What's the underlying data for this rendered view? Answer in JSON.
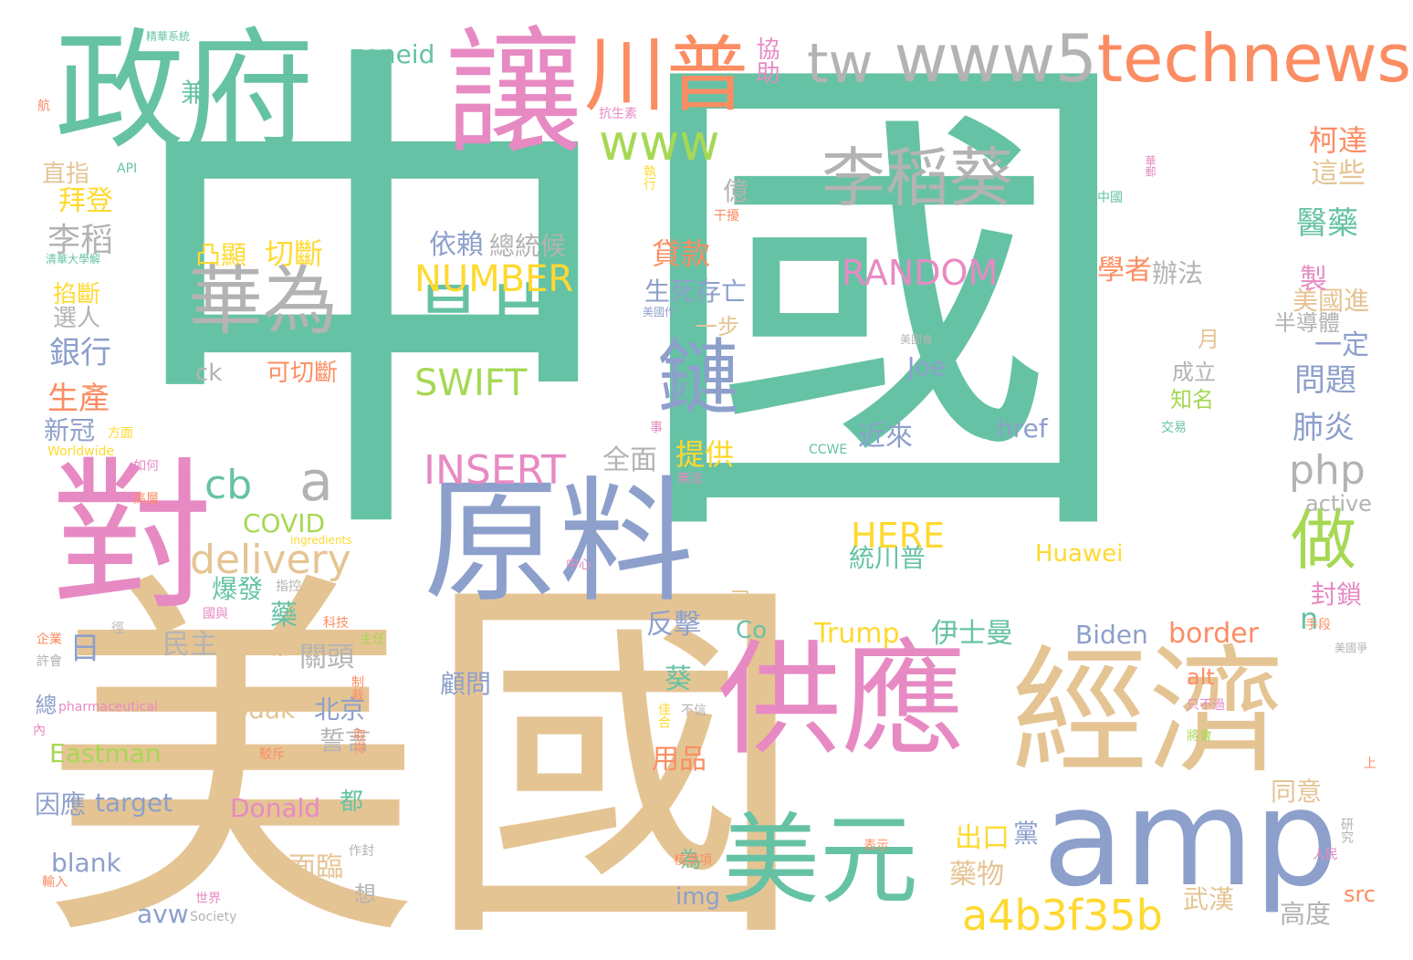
{
  "colors": {
    "teal": "#66c2a5",
    "orange": "#fc8d62",
    "blue": "#8da0cb",
    "pink": "#e78ac3",
    "green": "#a6d854",
    "yellow": "#ffd92f",
    "tan": "#e5c494",
    "grey": "#b3b3b3"
  },
  "words": [
    {
      "text": "中國",
      "color": "teal"
    },
    {
      "text": "美國",
      "color": "tan"
    },
    {
      "text": "政府",
      "color": "teal"
    },
    {
      "text": "讓",
      "color": "pink"
    },
    {
      "text": "川普",
      "color": "orange"
    },
    {
      "text": "tw",
      "color": "grey"
    },
    {
      "text": "www5technews",
      "color": "grey"
    },
    {
      "text": "technews",
      "color": "orange"
    },
    {
      "text": "對",
      "color": "pink"
    },
    {
      "text": "原料",
      "color": "blue"
    },
    {
      "text": "供應",
      "color": "pink"
    },
    {
      "text": "經濟",
      "color": "tan"
    },
    {
      "text": "美元",
      "color": "teal"
    },
    {
      "text": "amp",
      "color": "blue"
    },
    {
      "text": "李稻葵",
      "color": "grey"
    },
    {
      "text": "華為",
      "color": "grey"
    },
    {
      "text": "晶片",
      "color": "teal"
    },
    {
      "text": "鏈",
      "color": "blue"
    },
    {
      "text": "www",
      "color": "green"
    },
    {
      "text": "NUMBER",
      "color": "yellow"
    },
    {
      "text": "SWIFT",
      "color": "green"
    },
    {
      "text": "INSERT",
      "color": "pink"
    },
    {
      "text": "delivery",
      "color": "tan"
    },
    {
      "text": "a",
      "color": "grey"
    },
    {
      "text": "cb",
      "color": "teal"
    },
    {
      "text": "a4b3f35b",
      "color": "yellow"
    },
    {
      "text": "php",
      "color": "grey"
    },
    {
      "text": "做",
      "color": "green"
    },
    {
      "text": "RANDOM",
      "color": "pink"
    },
    {
      "text": "HERE",
      "color": "yellow"
    },
    {
      "text": "Joe",
      "color": "blue"
    },
    {
      "text": "zoneid",
      "color": "teal"
    },
    {
      "text": "依賴",
      "color": "blue"
    },
    {
      "text": "總統候",
      "color": "grey"
    },
    {
      "text": "切斷",
      "color": "yellow"
    },
    {
      "text": "凸顯",
      "color": "yellow"
    },
    {
      "text": "生死存亡",
      "color": "blue"
    },
    {
      "text": "貸款",
      "color": "orange"
    },
    {
      "text": "提供",
      "color": "yellow"
    },
    {
      "text": "李稻",
      "color": "grey"
    },
    {
      "text": "拜登",
      "color": "yellow"
    },
    {
      "text": "銀行",
      "color": "blue"
    },
    {
      "text": "生產",
      "color": "orange"
    },
    {
      "text": "新冠",
      "color": "blue"
    },
    {
      "text": "柯達",
      "color": "orange"
    },
    {
      "text": "這些",
      "color": "tan"
    },
    {
      "text": "醫藥",
      "color": "teal"
    },
    {
      "text": "學者",
      "color": "orange"
    },
    {
      "text": "辦法",
      "color": "grey"
    },
    {
      "text": "美國進",
      "color": "tan"
    },
    {
      "text": "問題",
      "color": "blue"
    },
    {
      "text": "肺炎",
      "color": "blue"
    },
    {
      "text": "封鎖",
      "color": "pink"
    },
    {
      "text": "n",
      "color": "teal"
    },
    {
      "text": "全面",
      "color": "grey"
    },
    {
      "text": "統川普",
      "color": "teal"
    },
    {
      "text": "伊士曼",
      "color": "teal"
    },
    {
      "text": "Huawei",
      "color": "yellow"
    },
    {
      "text": "Trump",
      "color": "yellow"
    },
    {
      "text": "Biden",
      "color": "blue"
    },
    {
      "text": "border",
      "color": "orange"
    },
    {
      "text": "Co",
      "color": "teal"
    },
    {
      "text": "反擊",
      "color": "blue"
    },
    {
      "text": "近來",
      "color": "blue"
    },
    {
      "text": "href",
      "color": "blue"
    },
    {
      "text": "active",
      "color": "grey"
    },
    {
      "text": "Kodak",
      "color": "tan"
    },
    {
      "text": "COVID",
      "color": "green"
    },
    {
      "text": "Eastman",
      "color": "green"
    },
    {
      "text": "Donald",
      "color": "pink"
    },
    {
      "text": "target",
      "color": "blue"
    },
    {
      "text": "blank",
      "color": "blue"
    },
    {
      "text": "avw",
      "color": "blue"
    },
    {
      "text": "img",
      "color": "blue"
    },
    {
      "text": "src",
      "color": "orange"
    },
    {
      "text": "alt",
      "color": "orange"
    },
    {
      "text": "民主",
      "color": "grey"
    },
    {
      "text": "關頭",
      "color": "grey"
    },
    {
      "text": "北京",
      "color": "blue"
    },
    {
      "text": "誓言",
      "color": "grey"
    },
    {
      "text": "顧問",
      "color": "blue"
    },
    {
      "text": "用品",
      "color": "orange"
    },
    {
      "text": "面臨",
      "color": "tan"
    },
    {
      "text": "出口",
      "color": "yellow"
    },
    {
      "text": "藥物",
      "color": "tan"
    },
    {
      "text": "武漢",
      "color": "tan"
    },
    {
      "text": "高度",
      "color": "grey"
    },
    {
      "text": "同意",
      "color": "tan"
    },
    {
      "text": "因應",
      "color": "blue"
    },
    {
      "text": "可切斷",
      "color": "orange"
    },
    {
      "text": "直指",
      "color": "tan"
    },
    {
      "text": "選人",
      "color": "grey"
    },
    {
      "text": "ck",
      "color": "grey"
    },
    {
      "text": "成立",
      "color": "grey"
    },
    {
      "text": "知名",
      "color": "green"
    },
    {
      "text": "一步",
      "color": "tan"
    },
    {
      "text": "半導體",
      "color": "grey"
    },
    {
      "text": "爆發",
      "color": "teal"
    },
    {
      "text": "億",
      "color": "grey"
    },
    {
      "text": "稱",
      "color": "teal"
    },
    {
      "text": "日",
      "color": "blue"
    },
    {
      "text": "兼",
      "color": "teal"
    },
    {
      "text": "協助",
      "color": "pink"
    },
    {
      "text": "都",
      "color": "teal"
    },
    {
      "text": "為",
      "color": "teal"
    },
    {
      "text": "黨",
      "color": "blue"
    },
    {
      "text": "想",
      "color": "grey"
    },
    {
      "text": "製",
      "color": "pink"
    },
    {
      "text": "一定",
      "color": "blue"
    },
    {
      "text": "藥",
      "color": "teal"
    },
    {
      "text": "葵",
      "color": "teal"
    },
    {
      "text": "已",
      "color": "tan"
    },
    {
      "text": "月",
      "color": "tan"
    },
    {
      "text": "總",
      "color": "blue"
    },
    {
      "text": "掐斷",
      "color": "yellow"
    },
    {
      "text": "API",
      "color": "teal"
    },
    {
      "text": "Worldwide",
      "color": "yellow"
    },
    {
      "text": "pharmaceutical",
      "color": "pink"
    },
    {
      "text": "Society",
      "color": "grey"
    },
    {
      "text": "ingredients",
      "color": "yellow"
    },
    {
      "text": "CCWE",
      "color": "teal"
    },
    {
      "text": "for",
      "color": "tan"
    },
    {
      "text": "抗生素",
      "color": "pink"
    },
    {
      "text": "精華系統",
      "color": "teal"
    },
    {
      "text": "美國作",
      "color": "blue"
    },
    {
      "text": "自中國",
      "color": "teal"
    },
    {
      "text": "華郵",
      "color": "pink"
    },
    {
      "text": "美國會",
      "color": "grey"
    },
    {
      "text": "事",
      "color": "pink"
    },
    {
      "text": "無法",
      "color": "pink"
    },
    {
      "text": "中心",
      "color": "pink"
    },
    {
      "text": "表示",
      "color": "orange"
    },
    {
      "text": "世界",
      "color": "pink"
    },
    {
      "text": "作封",
      "color": "grey"
    },
    {
      "text": "指控",
      "color": "grey"
    },
    {
      "text": "干擾",
      "color": "orange"
    },
    {
      "text": "交易",
      "color": "teal"
    },
    {
      "text": "將會",
      "color": "green"
    },
    {
      "text": "不信",
      "color": "grey"
    },
    {
      "text": "只不過",
      "color": "pink"
    },
    {
      "text": "佳合",
      "color": "yellow"
    },
    {
      "text": "主任",
      "color": "green"
    },
    {
      "text": "科技",
      "color": "orange"
    },
    {
      "text": "制裁",
      "color": "orange"
    },
    {
      "text": "駁斥",
      "color": "orange"
    },
    {
      "text": "取得",
      "color": "orange"
    },
    {
      "text": "核準項",
      "color": "orange"
    },
    {
      "text": "人民",
      "color": "pink"
    },
    {
      "text": "研究",
      "color": "grey"
    },
    {
      "text": "企業",
      "color": "orange"
    },
    {
      "text": "許會",
      "color": "grey"
    },
    {
      "text": "如何",
      "color": "pink"
    },
    {
      "text": "高層",
      "color": "orange"
    },
    {
      "text": "方面",
      "color": "yellow"
    },
    {
      "text": "清華大學解",
      "color": "teal"
    },
    {
      "text": "手段",
      "color": "orange"
    },
    {
      "text": "美國爭",
      "color": "grey"
    },
    {
      "text": "上",
      "color": "orange"
    },
    {
      "text": "內",
      "color": "pink"
    },
    {
      "text": "航",
      "color": "orange"
    },
    {
      "text": "徑",
      "color": "grey"
    },
    {
      "text": "國與",
      "color": "pink"
    },
    {
      "text": "執行",
      "color": "yellow"
    },
    {
      "text": "輸入",
      "color": "orange"
    }
  ]
}
